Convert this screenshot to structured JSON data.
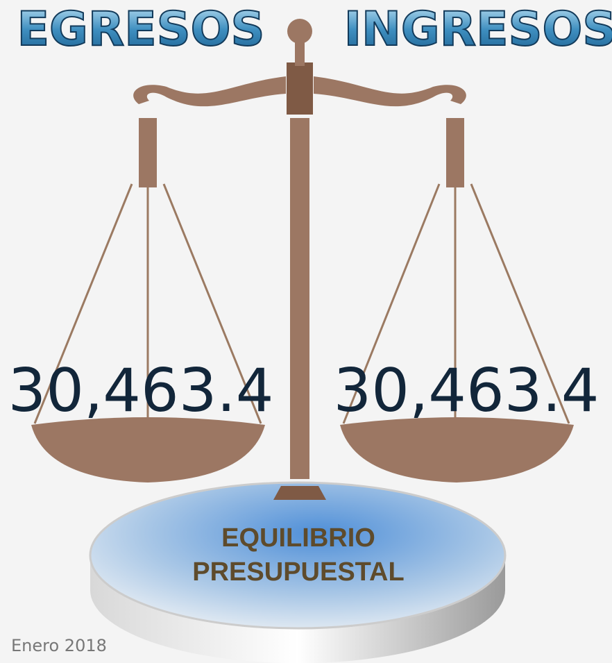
{
  "header": {
    "left_title": "EGRESOS",
    "right_title": "INGRESOS"
  },
  "amounts": {
    "egresos": "30,463.4",
    "ingresos": "30,463.4"
  },
  "base_label": [
    "EQUILIBRIO",
    "PRESUPUESTAL"
  ],
  "footer": {
    "date": "Enero 2018"
  }
}
